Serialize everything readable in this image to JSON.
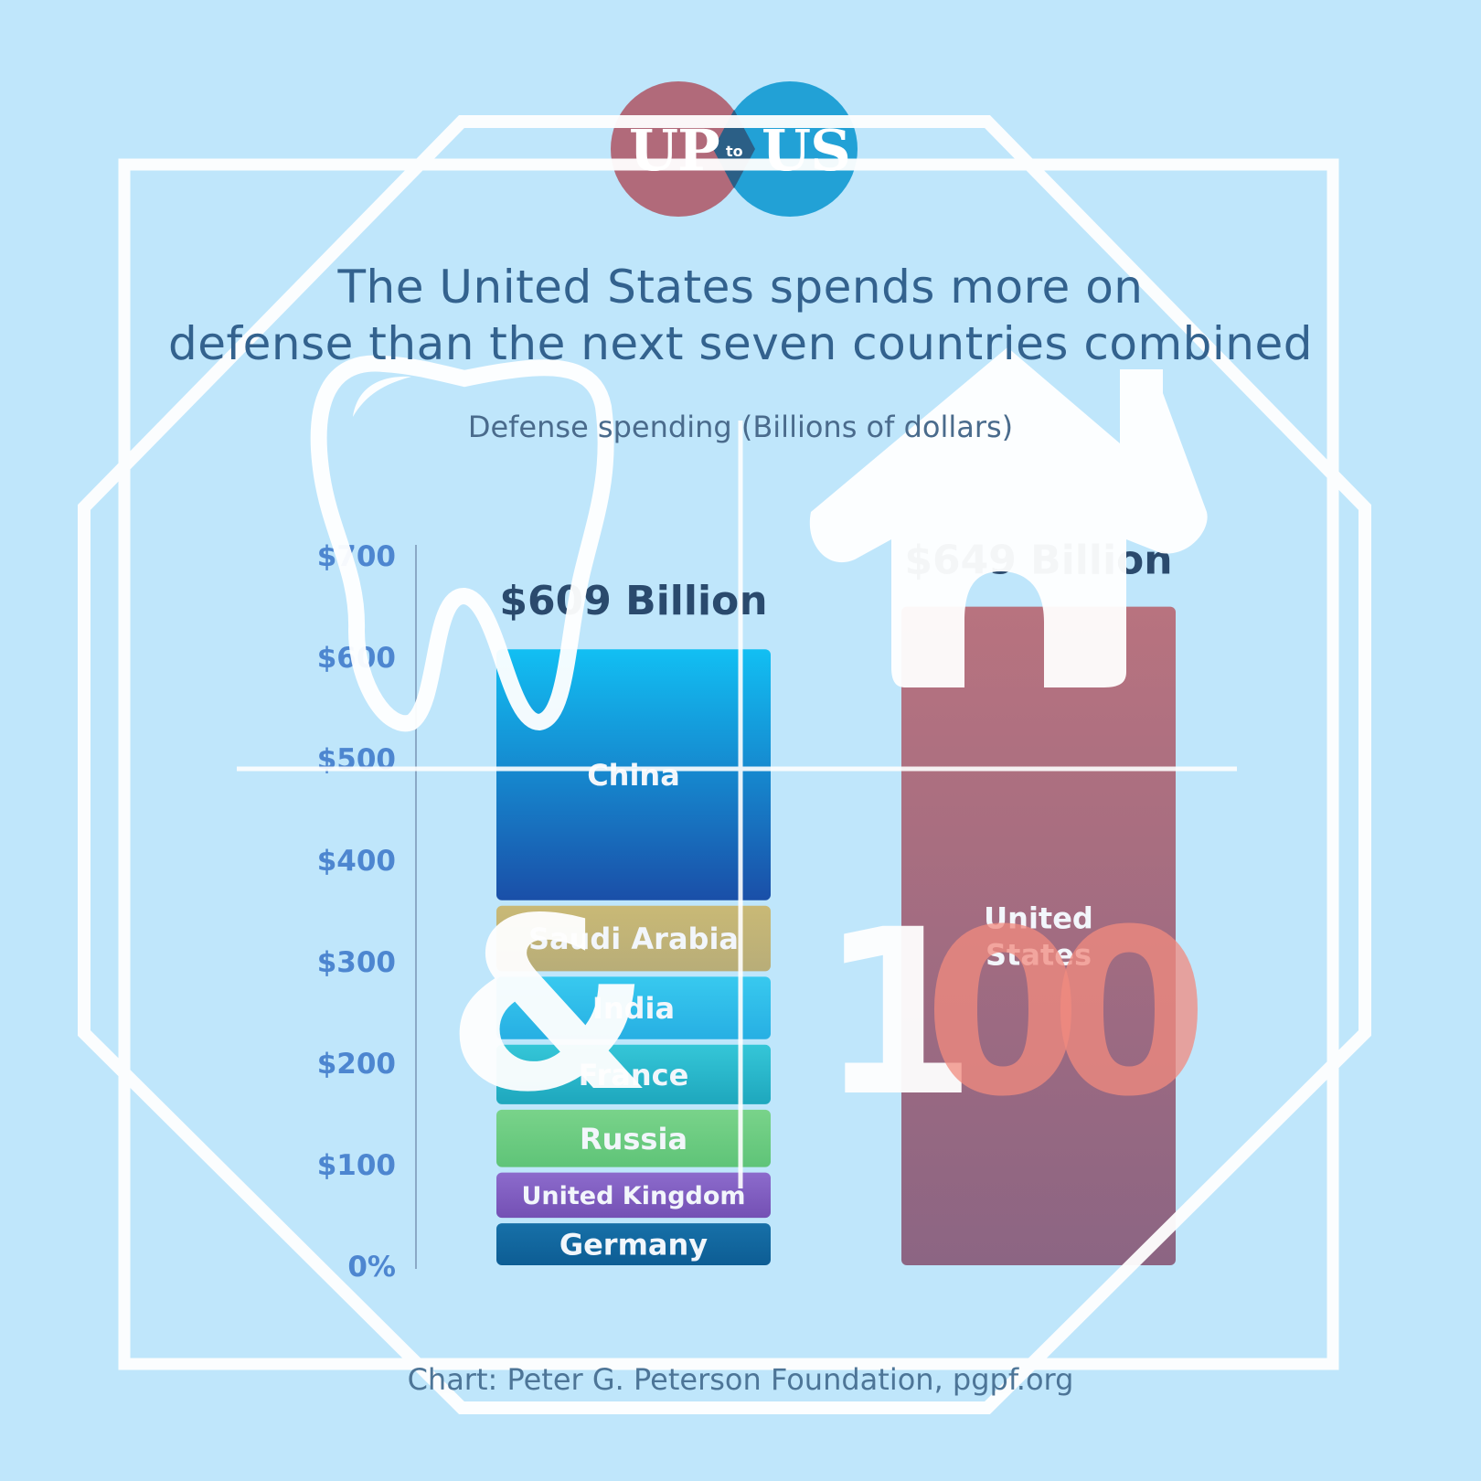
{
  "logo": {
    "left_word": "UP",
    "middle_word": "to",
    "right_word": "US",
    "left_color": "#b0606f",
    "right_color": "#159bd2"
  },
  "title_lines": [
    "The United States spends more on",
    "defense than the next seven countries combined"
  ],
  "subtitle": "Defense spending (Billions of dollars)",
  "source": "Chart: Peter G. Peterson Foundation, pgpf.org",
  "chart_data": {
    "type": "bar",
    "stacked": true,
    "ylim": [
      0,
      700
    ],
    "yticks": [
      {
        "value": 0,
        "label": "0%"
      },
      {
        "value": 100,
        "label": "$100"
      },
      {
        "value": 200,
        "label": "$200"
      },
      {
        "value": 300,
        "label": "$300"
      },
      {
        "value": 400,
        "label": "$400"
      },
      {
        "value": 500,
        "label": "$500"
      },
      {
        "value": 600,
        "label": "$600"
      },
      {
        "value": 700,
        "label": "$700"
      }
    ],
    "grid": false,
    "bars": [
      {
        "total_label": "$609 Billion",
        "total": 609,
        "segments": [
          {
            "label": "Germany",
            "value": 44,
            "color_top": "#1770a8",
            "color_bottom": "#0d5d94"
          },
          {
            "label": "United Kingdom",
            "value": 50,
            "color_top": "#8c6bcc",
            "color_bottom": "#7450b4"
          },
          {
            "label": "Russia",
            "value": 62,
            "color_top": "#79d38a",
            "color_bottom": "#5fc478"
          },
          {
            "label": "France",
            "value": 64,
            "color_top": "#35c6d8",
            "color_bottom": "#1ea7bd"
          },
          {
            "label": "India",
            "value": 67,
            "color_top": "#38c9ef",
            "color_bottom": "#27afe3"
          },
          {
            "label": "Saudi Arabia",
            "value": 70,
            "color_top": "#c9b976",
            "color_bottom": "#b8ad78"
          },
          {
            "label": "China",
            "value": 250,
            "color_top": "#12bff3",
            "color_bottom": "#1a4fa8"
          }
        ]
      },
      {
        "total_label": "$649 Billion",
        "total": 649,
        "segments": [
          {
            "label": "United States",
            "label_lines": [
              "United",
              "States"
            ],
            "value": 649,
            "color_top": "#b8737f",
            "color_bottom": "#8c6583"
          }
        ]
      }
    ]
  },
  "overlay_icons": [
    "octagon-outline-icon",
    "square-outline-icon",
    "crosshair-lines-icon",
    "tooth-icon",
    "house-arrow-icon",
    "ampersand-glyph",
    "number-100-glyph"
  ],
  "overlay_glyphs": {
    "ampersand": "&",
    "number_one": "1",
    "number_zero": "0"
  }
}
